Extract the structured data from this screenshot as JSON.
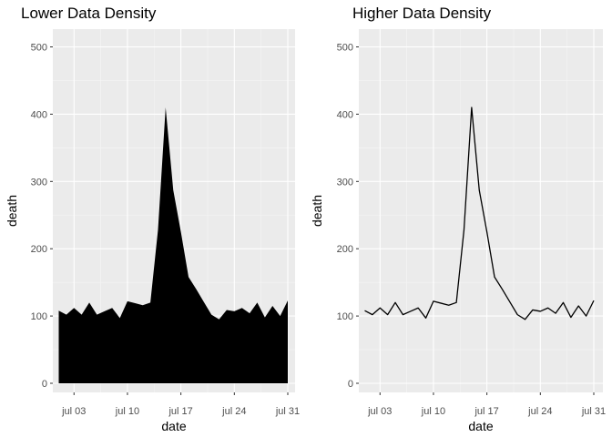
{
  "chart_data": [
    {
      "type": "area",
      "title": "Lower Data Density",
      "xlabel": "date",
      "ylabel": "death",
      "x_ticks": [
        {
          "day": 3,
          "label": "jul 03"
        },
        {
          "day": 10,
          "label": "jul 10"
        },
        {
          "day": 17,
          "label": "jul 17"
        },
        {
          "day": 24,
          "label": "jul 24"
        },
        {
          "day": 31,
          "label": "jul 31"
        }
      ],
      "y_ticks": [
        0,
        100,
        200,
        300,
        400,
        500
      ],
      "xlim": [
        "jul 01",
        "jul 31"
      ],
      "ylim": [
        0,
        520
      ],
      "grid": true,
      "fill_color": "#000000",
      "panel_color": "#ebebeb",
      "x": [
        "jul 01",
        "jul 02",
        "jul 03",
        "jul 04",
        "jul 05",
        "jul 06",
        "jul 07",
        "jul 08",
        "jul 09",
        "jul 10",
        "jul 11",
        "jul 12",
        "jul 13",
        "jul 14",
        "jul 15",
        "jul 16",
        "jul 17",
        "jul 18",
        "jul 19",
        "jul 20",
        "jul 21",
        "jul 22",
        "jul 23",
        "jul 24",
        "jul 25",
        "jul 26",
        "jul 27",
        "jul 28",
        "jul 29",
        "jul 30",
        "jul 31"
      ],
      "values": [
        108,
        102,
        112,
        102,
        120,
        102,
        107,
        112,
        97,
        122,
        119,
        116,
        120,
        228,
        410,
        287,
        225,
        158,
        140,
        121,
        102,
        95,
        109,
        107,
        112,
        104,
        120,
        98,
        115,
        100,
        123
      ]
    },
    {
      "type": "line",
      "title": "Higher Data Density",
      "xlabel": "date",
      "ylabel": "death",
      "x_ticks": [
        {
          "day": 3,
          "label": "jul 03"
        },
        {
          "day": 10,
          "label": "jul 10"
        },
        {
          "day": 17,
          "label": "jul 17"
        },
        {
          "day": 24,
          "label": "jul 24"
        },
        {
          "day": 31,
          "label": "jul 31"
        }
      ],
      "y_ticks": [
        0,
        100,
        200,
        300,
        400,
        500
      ],
      "xlim": [
        "jul 01",
        "jul 31"
      ],
      "ylim": [
        0,
        520
      ],
      "grid": true,
      "line_color": "#000000",
      "panel_color": "#ebebeb",
      "x": [
        "jul 01",
        "jul 02",
        "jul 03",
        "jul 04",
        "jul 05",
        "jul 06",
        "jul 07",
        "jul 08",
        "jul 09",
        "jul 10",
        "jul 11",
        "jul 12",
        "jul 13",
        "jul 14",
        "jul 15",
        "jul 16",
        "jul 17",
        "jul 18",
        "jul 19",
        "jul 20",
        "jul 21",
        "jul 22",
        "jul 23",
        "jul 24",
        "jul 25",
        "jul 26",
        "jul 27",
        "jul 28",
        "jul 29",
        "jul 30",
        "jul 31"
      ],
      "values": [
        108,
        102,
        112,
        102,
        120,
        102,
        107,
        112,
        97,
        122,
        119,
        116,
        120,
        228,
        410,
        287,
        225,
        158,
        140,
        121,
        102,
        95,
        109,
        107,
        112,
        104,
        120,
        98,
        115,
        100,
        123
      ]
    }
  ]
}
